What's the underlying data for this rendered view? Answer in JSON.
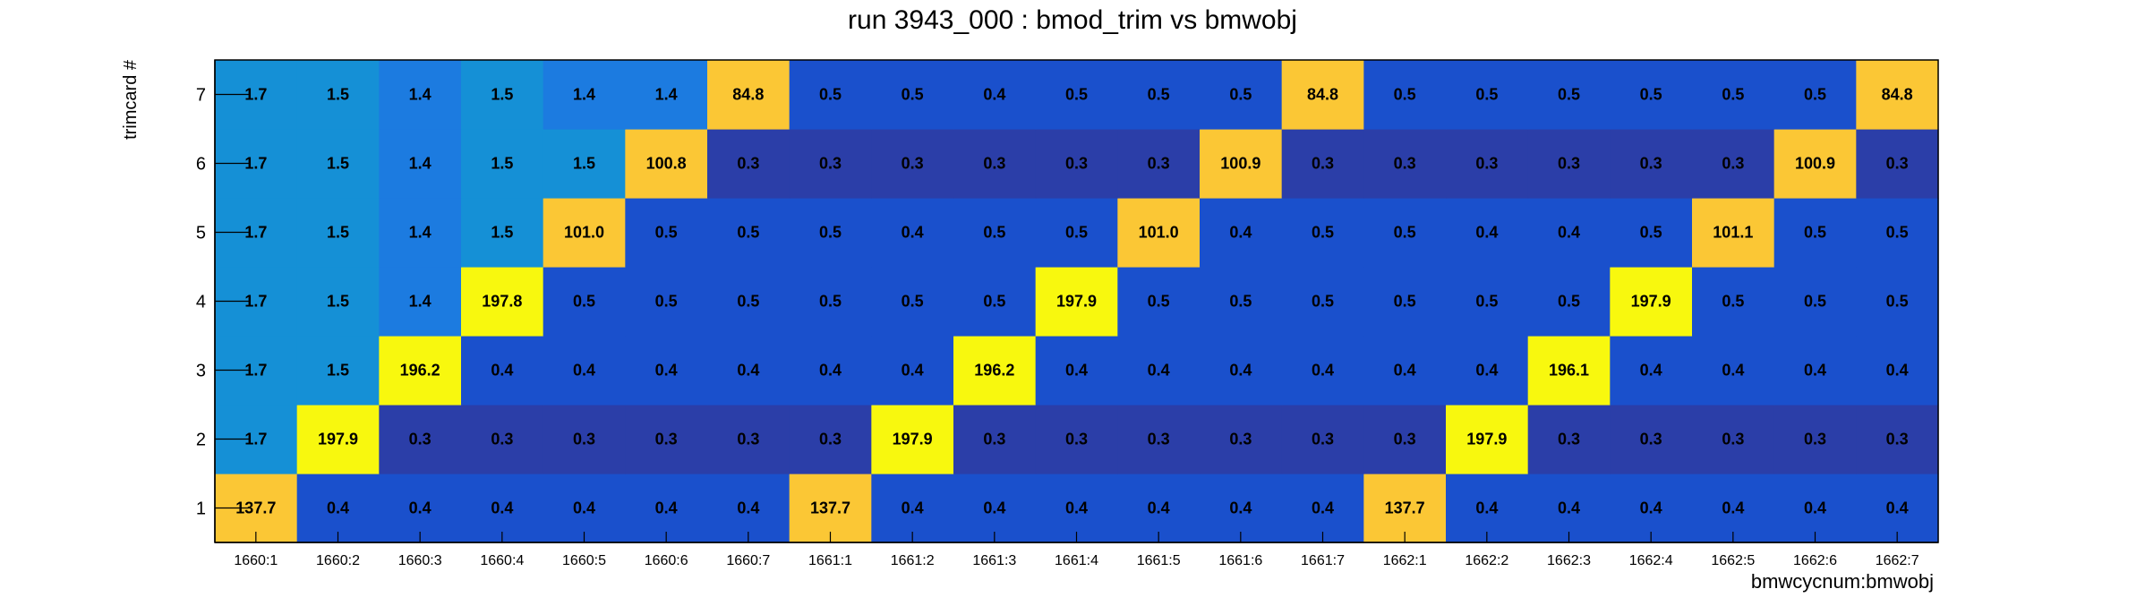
{
  "chart_data": {
    "type": "heatmap",
    "title": "run 3943_000 : bmod_trim vs bmwobj",
    "xlabel": "bmwcycnum:bmwobj",
    "ylabel": "trimcard #",
    "x_categories": [
      "1660:1",
      "1660:2",
      "1660:3",
      "1660:4",
      "1660:5",
      "1660:6",
      "1660:7",
      "1661:1",
      "1661:2",
      "1661:3",
      "1661:4",
      "1661:5",
      "1661:6",
      "1661:7",
      "1662:1",
      "1662:2",
      "1662:3",
      "1662:4",
      "1662:5",
      "1662:6",
      "1662:7"
    ],
    "y_categories": [
      "1",
      "2",
      "3",
      "4",
      "5",
      "6",
      "7"
    ],
    "values": [
      [
        "137.7",
        "0.4",
        "0.4",
        "0.4",
        "0.4",
        "0.4",
        "0.4",
        "137.7",
        "0.4",
        "0.4",
        "0.4",
        "0.4",
        "0.4",
        "0.4",
        "137.7",
        "0.4",
        "0.4",
        "0.4",
        "0.4",
        "0.4",
        "0.4"
      ],
      [
        "1.7",
        "197.9",
        "0.3",
        "0.3",
        "0.3",
        "0.3",
        "0.3",
        "0.3",
        "197.9",
        "0.3",
        "0.3",
        "0.3",
        "0.3",
        "0.3",
        "0.3",
        "197.9",
        "0.3",
        "0.3",
        "0.3",
        "0.3",
        "0.3"
      ],
      [
        "1.7",
        "1.5",
        "196.2",
        "0.4",
        "0.4",
        "0.4",
        "0.4",
        "0.4",
        "0.4",
        "196.2",
        "0.4",
        "0.4",
        "0.4",
        "0.4",
        "0.4",
        "0.4",
        "196.1",
        "0.4",
        "0.4",
        "0.4",
        "0.4"
      ],
      [
        "1.7",
        "1.5",
        "1.4",
        "197.8",
        "0.5",
        "0.5",
        "0.5",
        "0.5",
        "0.5",
        "0.5",
        "197.9",
        "0.5",
        "0.5",
        "0.5",
        "0.5",
        "0.5",
        "0.5",
        "197.9",
        "0.5",
        "0.5",
        "0.5"
      ],
      [
        "1.7",
        "1.5",
        "1.4",
        "1.5",
        "101.0",
        "0.5",
        "0.5",
        "0.5",
        "0.4",
        "0.5",
        "0.5",
        "101.0",
        "0.4",
        "0.5",
        "0.5",
        "0.4",
        "0.4",
        "0.5",
        "101.1",
        "0.5",
        "0.5"
      ],
      [
        "1.7",
        "1.5",
        "1.4",
        "1.5",
        "1.5",
        "100.8",
        "0.3",
        "0.3",
        "0.3",
        "0.3",
        "0.3",
        "0.3",
        "100.9",
        "0.3",
        "0.3",
        "0.3",
        "0.3",
        "0.3",
        "0.3",
        "100.9",
        "0.3"
      ],
      [
        "1.7",
        "1.5",
        "1.4",
        "1.5",
        "1.4",
        "1.4",
        "84.8",
        "0.5",
        "0.5",
        "0.4",
        "0.5",
        "0.5",
        "0.5",
        "84.8",
        "0.5",
        "0.5",
        "0.5",
        "0.5",
        "0.5",
        "0.5",
        "84.8"
      ]
    ],
    "colors": {
      "low_0_3": "#2b3ea8",
      "low_0_4_0_5": "#1a50cc",
      "mid_1_4": "#1c7be0",
      "mid_1_5": "#1590d6",
      "mid_1_7": "#1590d6",
      "high_80_140": "#fbc735",
      "high_196_198": "#f8f80e"
    },
    "grid": false,
    "legend": "none"
  }
}
